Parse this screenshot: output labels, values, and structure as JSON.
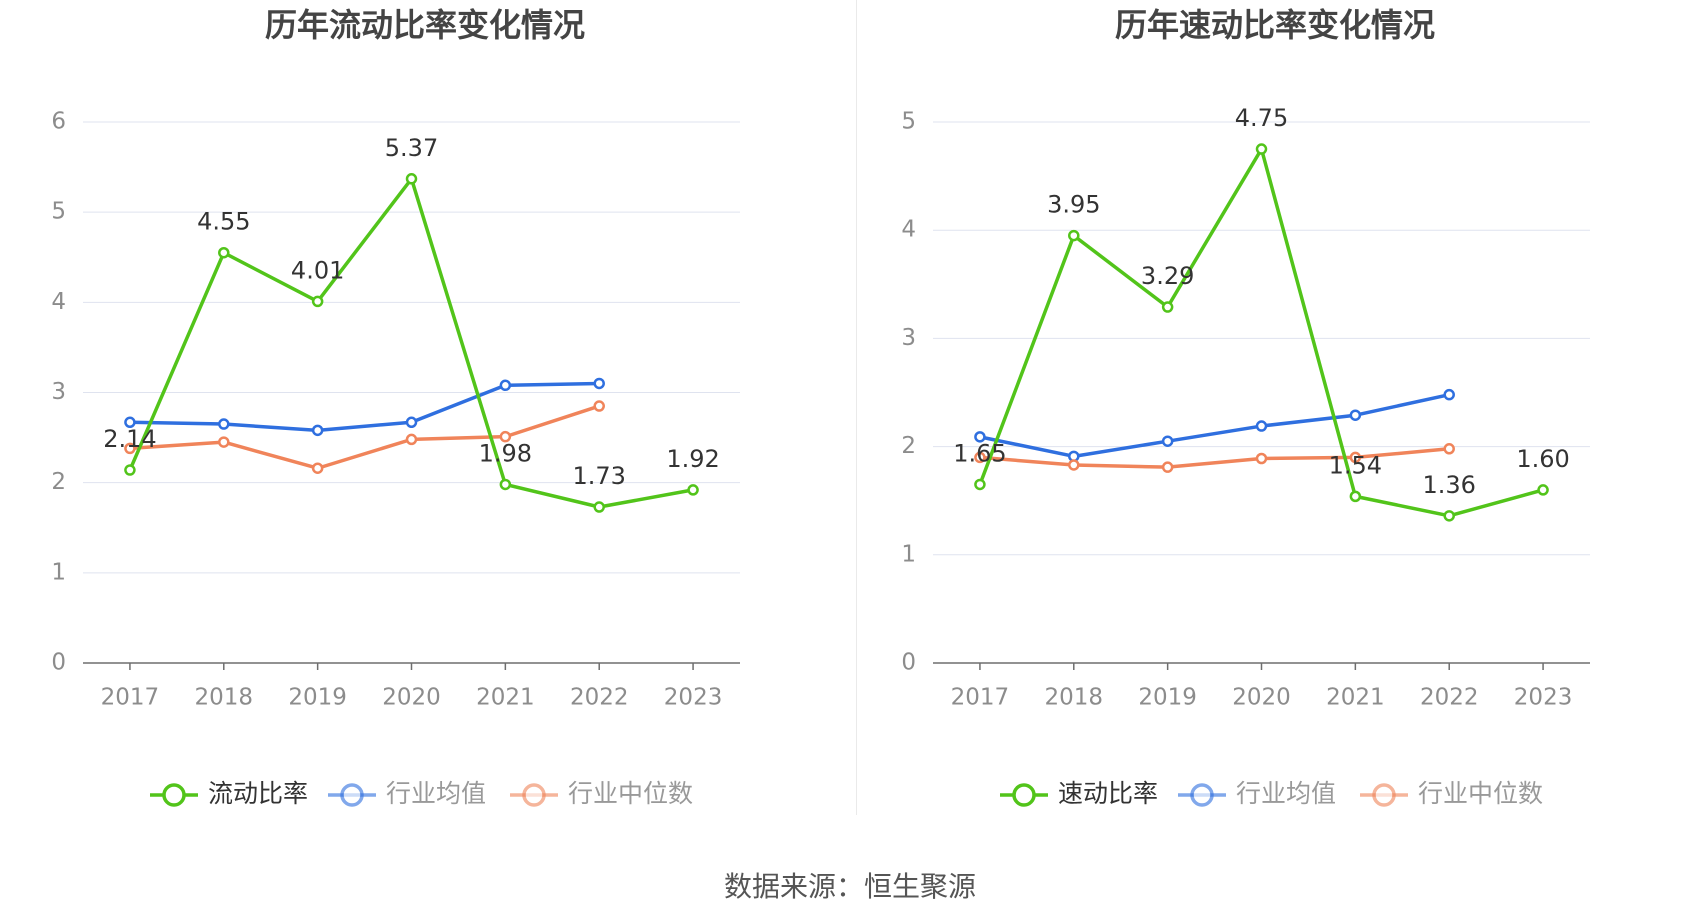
{
  "source": {
    "label": "数据来源：恒生聚源"
  },
  "colors": {
    "main": "#52c41a",
    "avg": "#2f6fdf",
    "median": "#f0845a",
    "grid": "#dfe3ef",
    "axis": "#6e6e6e",
    "tick_text": "#8c8c8c",
    "label_text": "#333333"
  },
  "chart_data": [
    {
      "type": "line",
      "title": "历年流动比率变化情况",
      "categories": [
        "2017",
        "2018",
        "2019",
        "2020",
        "2021",
        "2022",
        "2023"
      ],
      "ylim": [
        0,
        6
      ],
      "yticks": [
        "0",
        "1",
        "2",
        "3",
        "4",
        "5",
        "6"
      ],
      "series": [
        {
          "name": "流动比率",
          "key": "main",
          "values": [
            2.14,
            4.55,
            4.01,
            5.37,
            1.98,
            1.73,
            1.92
          ],
          "labels": [
            "2.14",
            "4.55",
            "4.01",
            "5.37",
            "1.98",
            "1.73",
            "1.92"
          ]
        },
        {
          "name": "行业均值",
          "key": "avg",
          "values": [
            2.67,
            2.65,
            2.58,
            2.67,
            3.08,
            3.1,
            null
          ]
        },
        {
          "name": "行业中位数",
          "key": "median",
          "values": [
            2.38,
            2.45,
            2.16,
            2.48,
            2.51,
            2.85,
            null
          ]
        }
      ]
    },
    {
      "type": "line",
      "title": "历年速动比率变化情况",
      "categories": [
        "2017",
        "2018",
        "2019",
        "2020",
        "2021",
        "2022",
        "2023"
      ],
      "ylim": [
        0,
        5
      ],
      "yticks": [
        "0",
        "1",
        "2",
        "3",
        "4",
        "5"
      ],
      "series": [
        {
          "name": "速动比率",
          "key": "main",
          "values": [
            1.65,
            3.95,
            3.29,
            4.75,
            1.54,
            1.36,
            1.6
          ],
          "labels": [
            "1.65",
            "3.95",
            "3.29",
            "4.75",
            "1.54",
            "1.36",
            "1.60"
          ]
        },
        {
          "name": "行业均值",
          "key": "avg",
          "values": [
            2.09,
            1.91,
            2.05,
            2.19,
            2.29,
            2.48,
            null
          ]
        },
        {
          "name": "行业中位数",
          "key": "median",
          "values": [
            1.9,
            1.83,
            1.81,
            1.89,
            1.9,
            1.98,
            null
          ]
        }
      ]
    }
  ]
}
